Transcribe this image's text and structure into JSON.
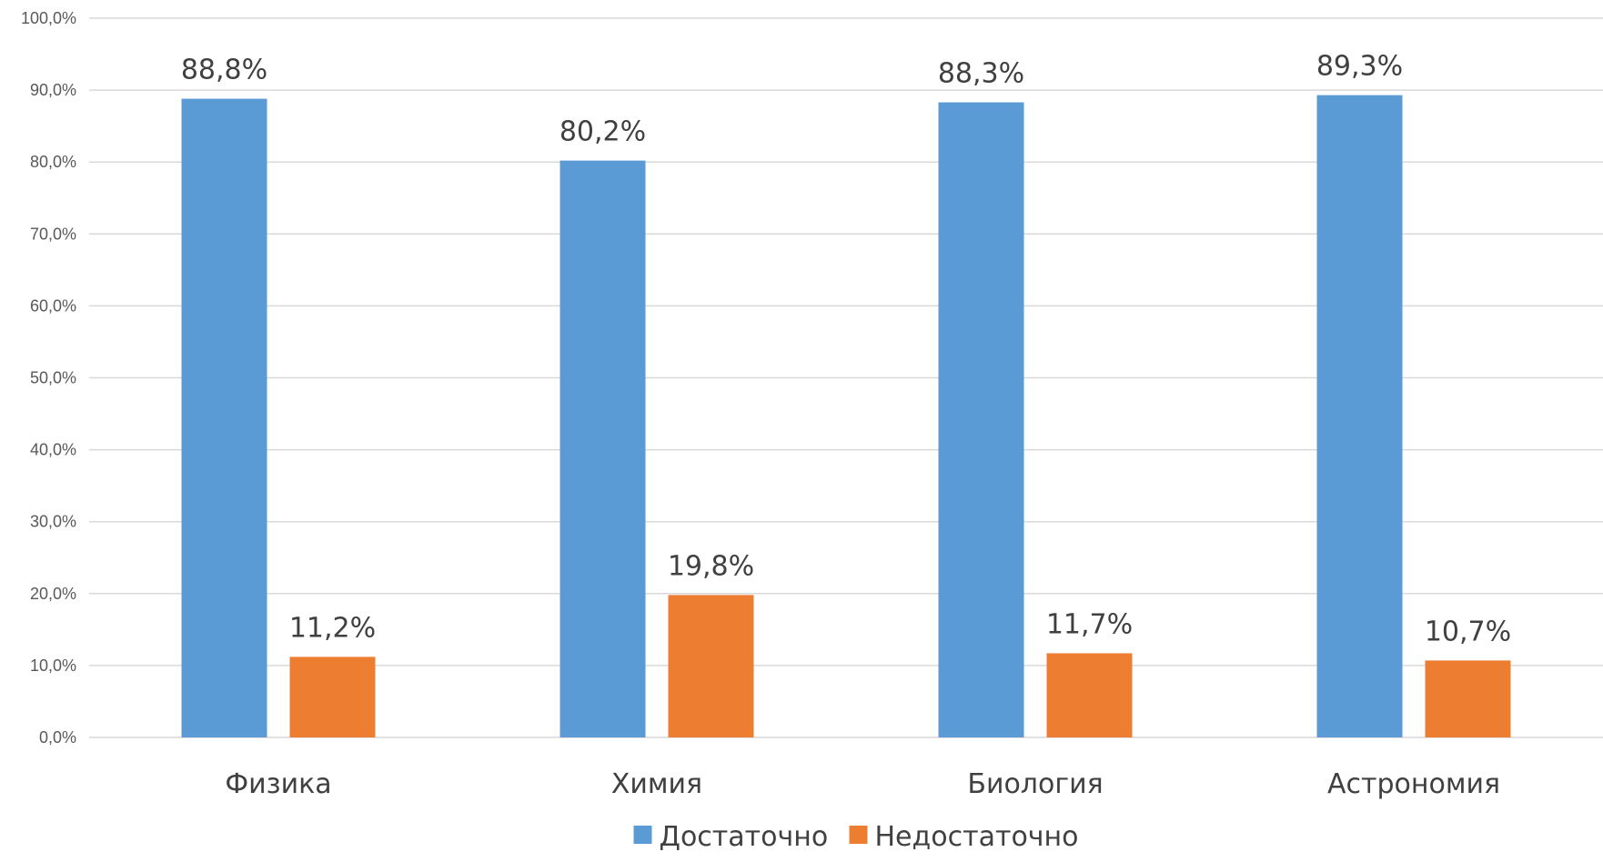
{
  "chart_data": {
    "type": "bar",
    "title": "",
    "xlabel": "",
    "ylabel": "",
    "ylim": [
      0,
      100
    ],
    "y_ticks": [
      "0,0%",
      "10,0%",
      "20,0%",
      "30,0%",
      "40,0%",
      "50,0%",
      "60,0%",
      "70,0%",
      "80,0%",
      "90,0%",
      "100,0%"
    ],
    "y_tick_values": [
      0,
      10,
      20,
      30,
      40,
      50,
      60,
      70,
      80,
      90,
      100
    ],
    "grid": true,
    "legend_position": "bottom",
    "categories": [
      "Физика",
      "Химия",
      "Биология",
      "Астрономия"
    ],
    "series": [
      {
        "name": "Достаточно",
        "color": "#5b9bd5",
        "values": [
          88.8,
          80.2,
          88.3,
          89.3
        ],
        "labels": [
          "88,8%",
          "80,2%",
          "88,3%",
          "89,3%"
        ]
      },
      {
        "name": "Недостаточно",
        "color": "#ed7d31",
        "values": [
          11.2,
          19.8,
          11.7,
          10.7
        ],
        "labels": [
          "11,2%",
          "19,8%",
          "11,7%",
          "10,7%"
        ]
      }
    ]
  }
}
